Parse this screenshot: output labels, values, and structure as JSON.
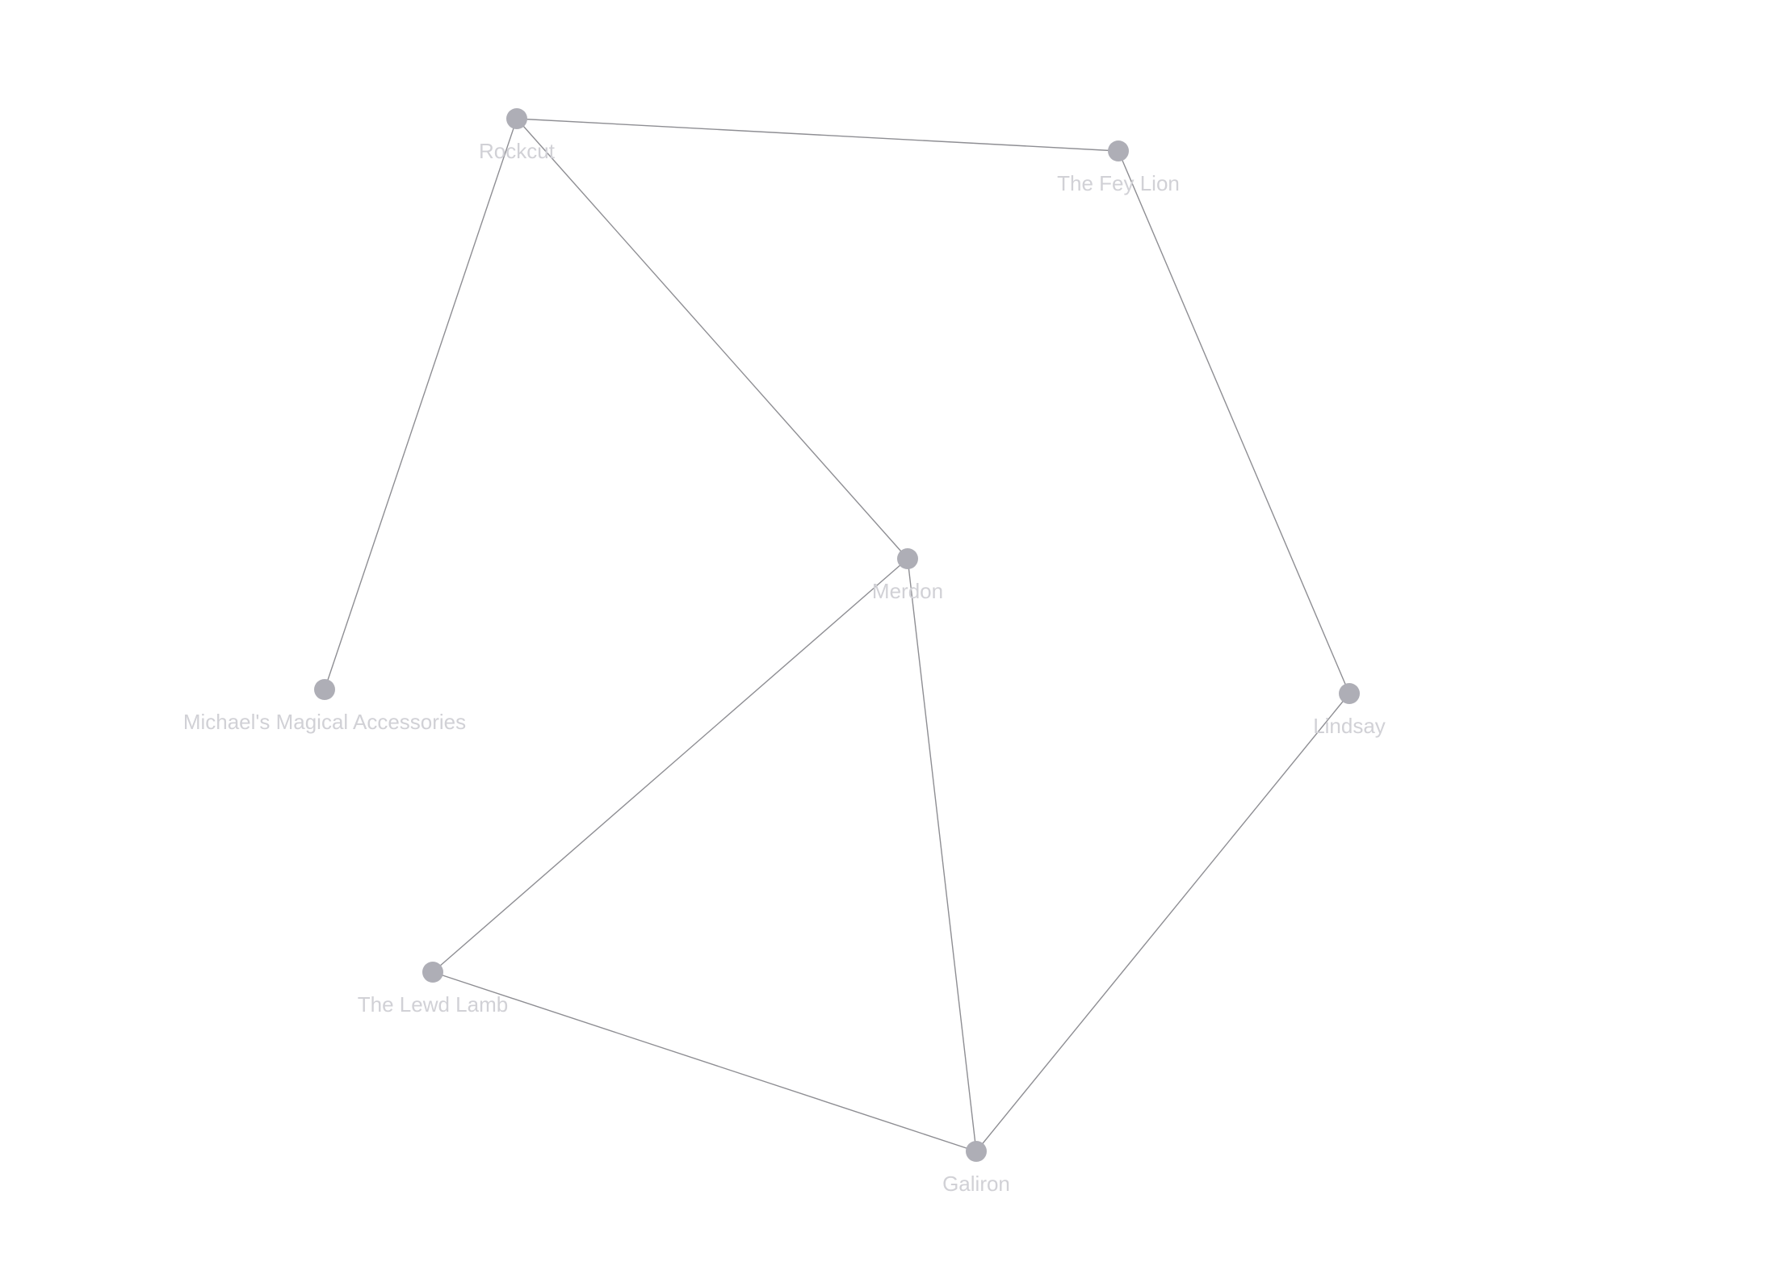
{
  "graph": {
    "colors": {
      "background": "#ffffff",
      "edge": "#8e8e93",
      "node_fill": "#aeaeb6",
      "label": "#d1d1d6"
    },
    "nodes": [
      {
        "id": "rockcut",
        "label": "Rockcut"
      },
      {
        "id": "fey-lion",
        "label": "The Fey Lion"
      },
      {
        "id": "merdon",
        "label": "Merdon"
      },
      {
        "id": "michaels",
        "label": "Michael's Magical Accessories"
      },
      {
        "id": "lindsay",
        "label": "Lindsay"
      },
      {
        "id": "lewd-lamb",
        "label": "The Lewd Lamb"
      },
      {
        "id": "galiron",
        "label": "Galiron"
      }
    ],
    "edges": [
      {
        "source": "rockcut",
        "target": "fey-lion"
      },
      {
        "source": "rockcut",
        "target": "merdon"
      },
      {
        "source": "rockcut",
        "target": "michaels"
      },
      {
        "source": "fey-lion",
        "target": "lindsay"
      },
      {
        "source": "merdon",
        "target": "lewd-lamb"
      },
      {
        "source": "merdon",
        "target": "galiron"
      },
      {
        "source": "lewd-lamb",
        "target": "galiron"
      },
      {
        "source": "lindsay",
        "target": "galiron"
      }
    ]
  }
}
